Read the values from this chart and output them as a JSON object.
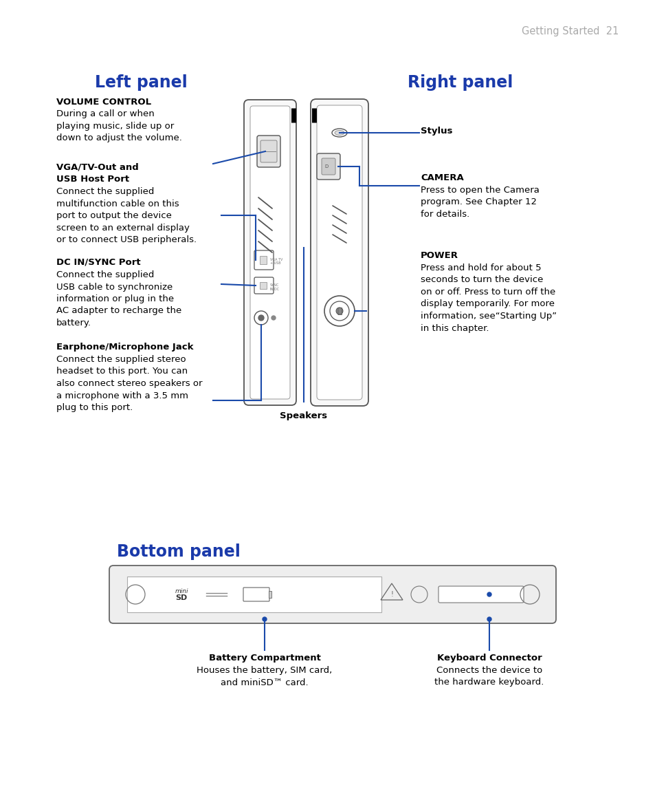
{
  "bg_color": "#ffffff",
  "page_header": "Getting Started  21",
  "header_color": "#aaaaaa",
  "title_color": "#1a3aaa",
  "text_color": "#000000",
  "blue_line_color": "#1a4aaa",
  "left_panel_title": "Left panel",
  "right_panel_title": "Right panel",
  "bottom_panel_title": "Bottom panel",
  "vol_bold": "VOLUME CONTROL",
  "vol_text": "During a call or when\nplaying music, slide up or\ndown to adjust the volume.",
  "vga_bold": "VGA/TV-Out and\nUSB Host Port",
  "vga_text": "Connect the supplied\nmultifunction cable on this\nport to output the device\nscreen to an external display\nor to connect USB peripherals.",
  "dc_bold": "DC IN/SYNC Port",
  "dc_text": "Connect the supplied\nUSB cable to synchronize\ninformation or plug in the\nAC adapter to recharge the\nbattery.",
  "ear_bold": "Earphone/Microphone Jack",
  "ear_text": "Connect the supplied stereo\nheadset to this port. You can\nalso connect stereo speakers or\na microphone with a 3.5 mm\nplug to this port.",
  "stylus_bold": "Stylus",
  "camera_bold": "CAMERA",
  "camera_text": "Press to open the Camera\nprogram. See Chapter 12\nfor details.",
  "power_bold": "POWER",
  "power_text": "Press and hold for about 5\nseconds to turn the device\non or off. Press to turn off the\ndisplay temporarily. For more\ninformation, see“Starting Up”\nin this chapter.",
  "speakers_bold": "Speakers",
  "bottom_left_bold": "Battery Compartment",
  "bottom_left_text": "Houses the battery, SIM card,\nand miniSD™ card.",
  "bottom_right_bold": "Keyboard Connector",
  "bottom_right_text": "Connects the device to\nthe hardware keyboard."
}
